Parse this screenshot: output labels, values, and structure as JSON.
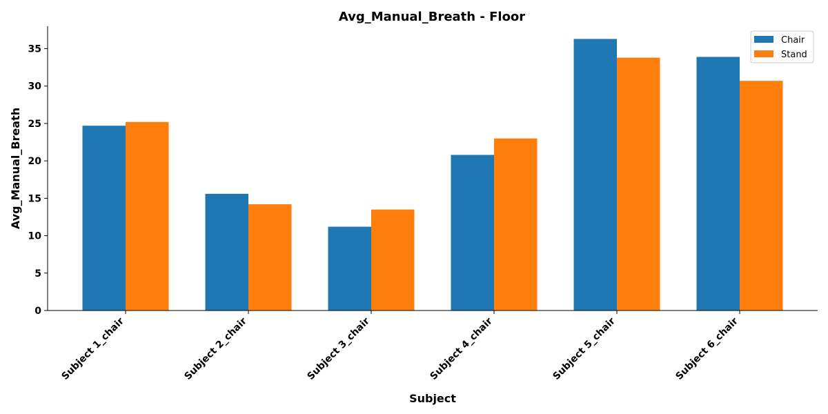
{
  "chart_data": {
    "type": "bar",
    "title": "Avg_Manual_Breath - Floor",
    "xlabel": "Subject",
    "ylabel": "Avg_Manual_Breath",
    "categories": [
      "Subject 1_chair",
      "Subject 2_chair",
      "Subject 3_chair",
      "Subject 4_chair",
      "Subject 5_chair",
      "Subject 6_chair"
    ],
    "series": [
      {
        "name": "Chair",
        "color": "#1f77b4",
        "values": [
          24.7,
          15.6,
          11.2,
          20.8,
          36.3,
          33.9
        ]
      },
      {
        "name": "Stand",
        "color": "#ff7f0e",
        "values": [
          25.2,
          14.2,
          13.5,
          23.0,
          33.8,
          30.7
        ]
      }
    ],
    "yticks": [
      0,
      5,
      10,
      15,
      20,
      25,
      30,
      35
    ],
    "ylim": [
      0,
      38
    ],
    "grid": false,
    "legend_position": "top-right"
  }
}
